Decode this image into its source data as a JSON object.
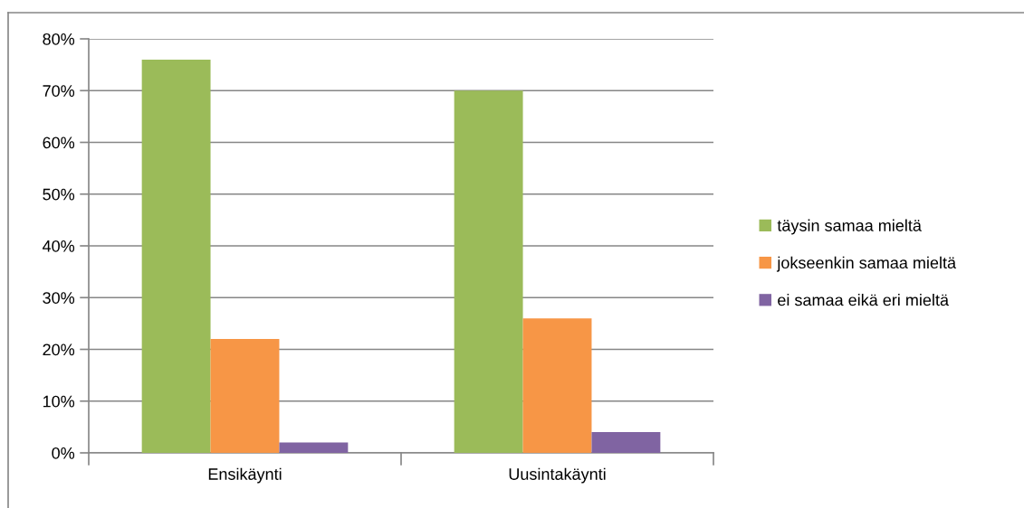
{
  "chart_data": {
    "type": "bar",
    "categories": [
      "Ensikäynti",
      "Uusintakäynti"
    ],
    "series": [
      {
        "name": "täysin samaa mieltä",
        "color": "#9bbb59",
        "values": [
          76,
          70
        ]
      },
      {
        "name": "jokseenkin samaa mieltä",
        "color": "#f79646",
        "values": [
          22,
          26
        ]
      },
      {
        "name": "ei samaa eikä eri mieltä",
        "color": "#8064a2",
        "values": [
          2,
          4
        ]
      }
    ],
    "ylim": [
      0,
      80
    ],
    "yticks": [
      {
        "value": 0,
        "label": "0%"
      },
      {
        "value": 10,
        "label": "10%"
      },
      {
        "value": 20,
        "label": "20%"
      },
      {
        "value": 30,
        "label": "30%"
      },
      {
        "value": 40,
        "label": "40%"
      },
      {
        "value": 50,
        "label": "50%"
      },
      {
        "value": 60,
        "label": "60%"
      },
      {
        "value": 70,
        "label": "70%"
      },
      {
        "value": 80,
        "label": "80%"
      }
    ],
    "grid": "y",
    "legend": "right"
  }
}
